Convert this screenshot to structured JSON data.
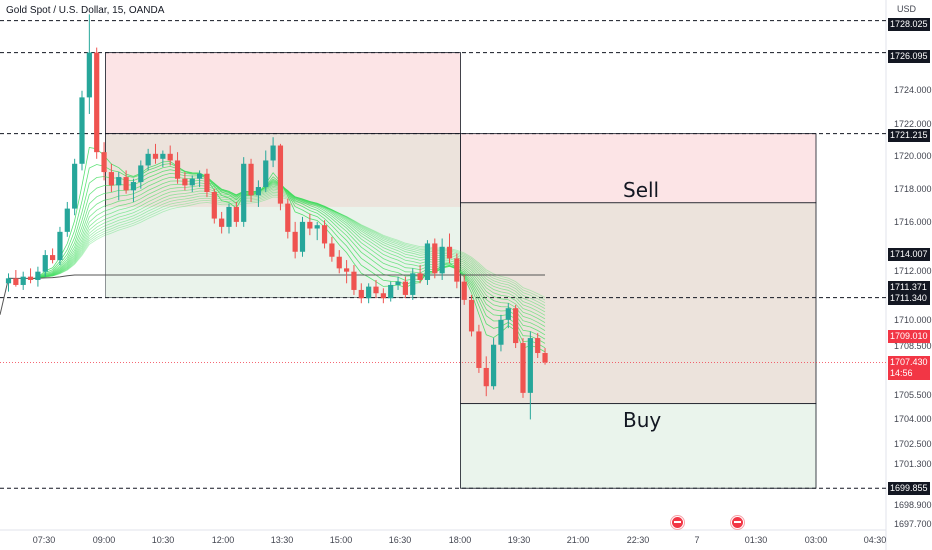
{
  "header": {
    "title": "Gold Spot / U.S. Dollar, 15, OANDA",
    "currency": "USD"
  },
  "zones": {
    "sell_label": "Sell",
    "buy_label": "Buy"
  },
  "colors": {
    "up": "#26a69a",
    "down": "#ef5350",
    "sell_fill": "#fce4e6",
    "buy_fill": "#eaf4ec",
    "mid_fill": "#ece3dc",
    "line_dark": "#131722"
  },
  "price_axis": {
    "ticks": [
      "1724.000",
      "1722.000",
      "1720.000",
      "1718.000",
      "1716.000",
      "1712.000",
      "1710.000",
      "1708.500",
      "1705.500",
      "1704.000",
      "1702.500",
      "1701.300",
      "1698.900",
      "1697.700"
    ],
    "tags": {
      "t1728": "1728.025",
      "t1726": "1726.095",
      "t1721": "1721.215",
      "t1714": "1714.007",
      "t1711a": "1711.371",
      "t1711b": "1711.340",
      "t1709": "1709.010",
      "t1707": "1707.430",
      "countdown": "14:56",
      "t1699": "1699.855"
    }
  },
  "time_axis": [
    "07:30",
    "09:00",
    "10:30",
    "12:00",
    "13:30",
    "15:00",
    "16:30",
    "18:00",
    "19:30",
    "21:00",
    "22:30",
    "7",
    "01:30",
    "03:00",
    "04:30"
  ],
  "events": [
    "economic-event-icon",
    "economic-event-icon"
  ],
  "chart_data": {
    "type": "candlestick",
    "symbol": "Gold Spot / U.S. Dollar",
    "interval": "15",
    "ylim": [
      1696.9,
      1729.0
    ],
    "xlim_bars": [
      0,
      93
    ],
    "candles": [
      {
        "o": 1712.2,
        "h": 1712.8,
        "l": 1711.7,
        "c": 1712.5
      },
      {
        "o": 1712.5,
        "h": 1713.0,
        "l": 1712.0,
        "c": 1712.1
      },
      {
        "o": 1712.1,
        "h": 1712.9,
        "l": 1711.8,
        "c": 1712.6
      },
      {
        "o": 1712.6,
        "h": 1713.1,
        "l": 1712.2,
        "c": 1712.4
      },
      {
        "o": 1712.4,
        "h": 1713.2,
        "l": 1712.0,
        "c": 1712.9
      },
      {
        "o": 1712.9,
        "h": 1714.2,
        "l": 1712.6,
        "c": 1713.9
      },
      {
        "o": 1713.9,
        "h": 1714.3,
        "l": 1713.4,
        "c": 1713.6
      },
      {
        "o": 1713.6,
        "h": 1715.6,
        "l": 1713.3,
        "c": 1715.3
      },
      {
        "o": 1715.3,
        "h": 1717.1,
        "l": 1715.0,
        "c": 1716.7
      },
      {
        "o": 1716.7,
        "h": 1719.7,
        "l": 1716.3,
        "c": 1719.4
      },
      {
        "o": 1719.4,
        "h": 1723.8,
        "l": 1719.0,
        "c": 1723.4
      },
      {
        "o": 1723.4,
        "h": 1728.4,
        "l": 1722.4,
        "c": 1726.1
      },
      {
        "o": 1726.1,
        "h": 1726.4,
        "l": 1719.7,
        "c": 1720.1
      },
      {
        "o": 1720.1,
        "h": 1720.7,
        "l": 1718.4,
        "c": 1718.9
      },
      {
        "o": 1718.9,
        "h": 1719.4,
        "l": 1717.7,
        "c": 1718.1
      },
      {
        "o": 1718.1,
        "h": 1718.9,
        "l": 1717.2,
        "c": 1718.6
      },
      {
        "o": 1718.6,
        "h": 1719.0,
        "l": 1717.6,
        "c": 1717.8
      },
      {
        "o": 1717.8,
        "h": 1718.5,
        "l": 1717.1,
        "c": 1718.3
      },
      {
        "o": 1718.3,
        "h": 1719.6,
        "l": 1717.9,
        "c": 1719.3
      },
      {
        "o": 1719.3,
        "h": 1720.3,
        "l": 1719.0,
        "c": 1720.0
      },
      {
        "o": 1720.0,
        "h": 1720.6,
        "l": 1719.4,
        "c": 1719.7
      },
      {
        "o": 1719.7,
        "h": 1720.2,
        "l": 1719.2,
        "c": 1720.0
      },
      {
        "o": 1720.0,
        "h": 1720.5,
        "l": 1719.3,
        "c": 1719.6
      },
      {
        "o": 1719.6,
        "h": 1720.1,
        "l": 1718.2,
        "c": 1718.5
      },
      {
        "o": 1718.5,
        "h": 1718.9,
        "l": 1717.8,
        "c": 1718.1
      },
      {
        "o": 1718.1,
        "h": 1718.7,
        "l": 1717.7,
        "c": 1718.5
      },
      {
        "o": 1718.5,
        "h": 1719.0,
        "l": 1718.0,
        "c": 1718.8
      },
      {
        "o": 1718.8,
        "h": 1719.1,
        "l": 1717.4,
        "c": 1717.7
      },
      {
        "o": 1717.7,
        "h": 1717.9,
        "l": 1715.8,
        "c": 1716.1
      },
      {
        "o": 1716.1,
        "h": 1716.5,
        "l": 1715.2,
        "c": 1715.6
      },
      {
        "o": 1715.6,
        "h": 1717.0,
        "l": 1715.2,
        "c": 1716.8
      },
      {
        "o": 1716.8,
        "h": 1717.1,
        "l": 1715.6,
        "c": 1715.9
      },
      {
        "o": 1715.9,
        "h": 1719.8,
        "l": 1715.6,
        "c": 1719.4
      },
      {
        "o": 1719.4,
        "h": 1719.7,
        "l": 1717.1,
        "c": 1717.5
      },
      {
        "o": 1717.5,
        "h": 1718.4,
        "l": 1716.8,
        "c": 1718.0
      },
      {
        "o": 1718.0,
        "h": 1720.2,
        "l": 1717.7,
        "c": 1719.6
      },
      {
        "o": 1719.6,
        "h": 1721.0,
        "l": 1719.2,
        "c": 1720.5
      },
      {
        "o": 1720.5,
        "h": 1720.6,
        "l": 1716.6,
        "c": 1717.0
      },
      {
        "o": 1717.0,
        "h": 1717.3,
        "l": 1714.9,
        "c": 1715.3
      },
      {
        "o": 1715.3,
        "h": 1715.9,
        "l": 1713.7,
        "c": 1714.1
      },
      {
        "o": 1714.1,
        "h": 1716.2,
        "l": 1713.8,
        "c": 1715.9
      },
      {
        "o": 1715.9,
        "h": 1716.4,
        "l": 1715.1,
        "c": 1715.5
      },
      {
        "o": 1715.5,
        "h": 1715.9,
        "l": 1714.8,
        "c": 1715.7
      },
      {
        "o": 1715.7,
        "h": 1716.0,
        "l": 1714.3,
        "c": 1714.6
      },
      {
        "o": 1714.6,
        "h": 1715.0,
        "l": 1713.5,
        "c": 1713.8
      },
      {
        "o": 1713.8,
        "h": 1714.2,
        "l": 1712.8,
        "c": 1713.1
      },
      {
        "o": 1713.1,
        "h": 1713.6,
        "l": 1712.2,
        "c": 1712.9
      },
      {
        "o": 1712.9,
        "h": 1713.3,
        "l": 1711.5,
        "c": 1711.8
      },
      {
        "o": 1711.8,
        "h": 1712.2,
        "l": 1711.0,
        "c": 1711.3
      },
      {
        "o": 1711.3,
        "h": 1712.2,
        "l": 1711.0,
        "c": 1712.0
      },
      {
        "o": 1712.0,
        "h": 1712.4,
        "l": 1711.3,
        "c": 1711.6
      },
      {
        "o": 1711.6,
        "h": 1711.9,
        "l": 1711.0,
        "c": 1711.3
      },
      {
        "o": 1711.3,
        "h": 1712.3,
        "l": 1711.1,
        "c": 1712.1
      },
      {
        "o": 1712.1,
        "h": 1712.6,
        "l": 1711.8,
        "c": 1712.3
      },
      {
        "o": 1712.3,
        "h": 1712.6,
        "l": 1711.3,
        "c": 1711.5
      },
      {
        "o": 1711.5,
        "h": 1713.1,
        "l": 1711.2,
        "c": 1712.8
      },
      {
        "o": 1712.8,
        "h": 1713.3,
        "l": 1712.2,
        "c": 1712.4
      },
      {
        "o": 1712.4,
        "h": 1714.8,
        "l": 1712.1,
        "c": 1714.6
      },
      {
        "o": 1714.6,
        "h": 1714.9,
        "l": 1712.5,
        "c": 1712.8
      },
      {
        "o": 1712.8,
        "h": 1714.9,
        "l": 1712.4,
        "c": 1714.4
      },
      {
        "o": 1714.4,
        "h": 1715.2,
        "l": 1713.4,
        "c": 1713.7
      },
      {
        "o": 1713.7,
        "h": 1714.0,
        "l": 1711.9,
        "c": 1712.3
      },
      {
        "o": 1712.3,
        "h": 1712.7,
        "l": 1710.9,
        "c": 1711.2
      },
      {
        "o": 1711.2,
        "h": 1711.5,
        "l": 1709.0,
        "c": 1709.3
      },
      {
        "o": 1709.3,
        "h": 1709.7,
        "l": 1706.8,
        "c": 1707.1
      },
      {
        "o": 1707.1,
        "h": 1707.8,
        "l": 1705.4,
        "c": 1706.0
      },
      {
        "o": 1706.0,
        "h": 1708.9,
        "l": 1705.8,
        "c": 1708.5
      },
      {
        "o": 1708.5,
        "h": 1710.3,
        "l": 1708.1,
        "c": 1710.0
      },
      {
        "o": 1710.0,
        "h": 1711.0,
        "l": 1709.5,
        "c": 1710.7
      },
      {
        "o": 1710.7,
        "h": 1710.9,
        "l": 1708.3,
        "c": 1708.6
      },
      {
        "o": 1708.6,
        "h": 1708.9,
        "l": 1705.3,
        "c": 1705.6
      },
      {
        "o": 1705.6,
        "h": 1709.3,
        "l": 1704.0,
        "c": 1708.9
      },
      {
        "o": 1708.9,
        "h": 1709.2,
        "l": 1707.7,
        "c": 1708.0
      },
      {
        "o": 1708.0,
        "h": 1708.3,
        "l": 1707.3,
        "c": 1707.43
      }
    ],
    "zones": {
      "sell_upper": {
        "label": "",
        "top": 1726.095,
        "bottom": 1721.215
      },
      "buy_upper": {
        "label": "",
        "top": 1721.215,
        "bottom": 1711.34
      },
      "sell_lower": {
        "label": "Sell",
        "top": 1721.215,
        "bottom": 1717.05
      },
      "middle_lower": {
        "label": "",
        "top": 1717.05,
        "bottom": 1704.95
      },
      "buy_lower": {
        "label": "Buy",
        "top": 1704.95,
        "bottom": 1699.855
      }
    },
    "horizontal_levels": [
      1728.025,
      1726.095,
      1721.215,
      1711.34,
      1699.855
    ],
    "current_price": 1707.43,
    "grid": false,
    "legend": "none"
  }
}
